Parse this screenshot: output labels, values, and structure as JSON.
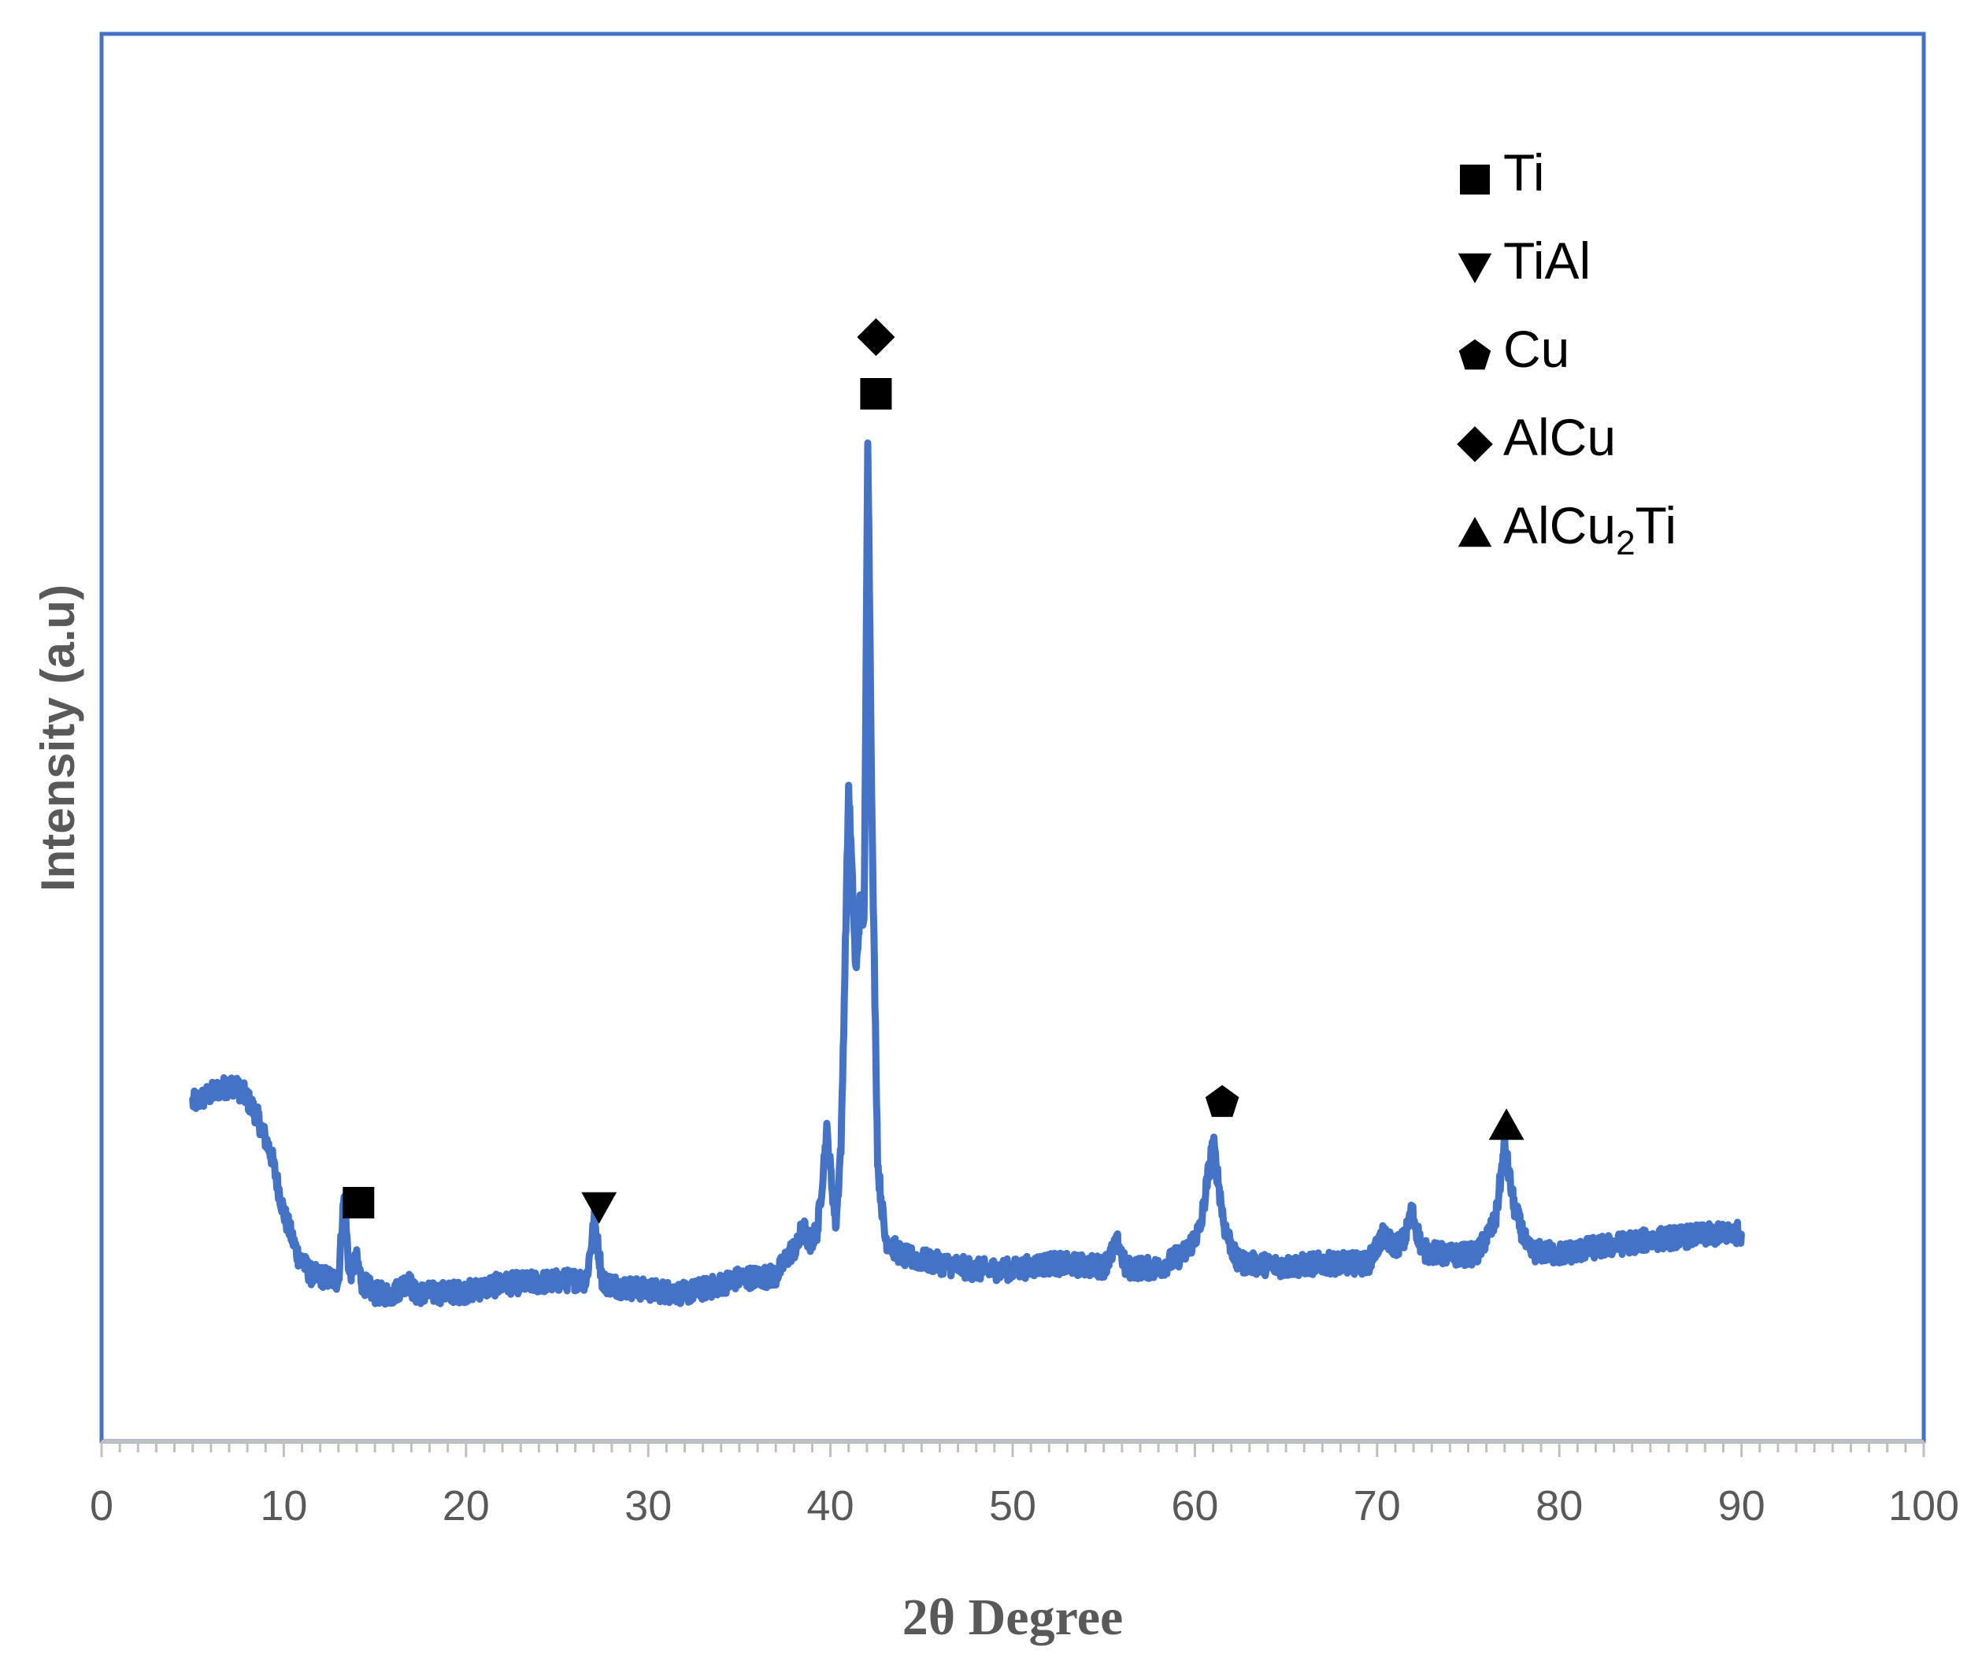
{
  "chart_data": {
    "type": "line",
    "title": "",
    "xlabel": "2θ Degree",
    "ylabel": "Intensity (a.u)",
    "xlim": [
      0,
      100
    ],
    "x_ticks": [
      "0",
      "10",
      "20",
      "30",
      "40",
      "50",
      "60",
      "70",
      "80",
      "90",
      "100"
    ],
    "y_ticks_shown": false,
    "grid": false,
    "legend_position": "top-right",
    "colors": {
      "line": "#4472c4",
      "frame": "#4472c4",
      "axis": "#bfbfbf",
      "marker": "#000000",
      "text": "#595959"
    },
    "legend": [
      {
        "marker": "square",
        "label": "Ti"
      },
      {
        "marker": "triangle-down",
        "label": "TiAl"
      },
      {
        "marker": "pentagon",
        "label": "Cu"
      },
      {
        "marker": "diamond",
        "label": "AlCu"
      },
      {
        "marker": "triangle-up",
        "label": "AlCu",
        "subscript": "2",
        "suffix": "Ti"
      }
    ],
    "x_range_measured": [
      5,
      90
    ],
    "noise_amplitude": 14,
    "series": [
      {
        "values": [
          [
            5,
            300
          ],
          [
            5.5,
            305
          ],
          [
            6.5,
            318
          ],
          [
            7.2,
            322
          ],
          [
            7.8,
            312
          ],
          [
            8.5,
            285
          ],
          [
            9.3,
            235
          ],
          [
            10,
            160
          ],
          [
            10.8,
            105
          ],
          [
            11.5,
            82
          ],
          [
            12.3,
            78
          ],
          [
            13,
            74
          ],
          [
            13.3,
            180
          ],
          [
            13.6,
            82
          ],
          [
            14,
            100
          ],
          [
            14.3,
            72
          ],
          [
            15,
            58
          ],
          [
            16,
            57
          ],
          [
            16.8,
            74
          ],
          [
            17.2,
            58
          ],
          [
            18,
            58
          ],
          [
            20,
            60
          ],
          [
            22,
            70
          ],
          [
            24,
            72
          ],
          [
            26,
            75
          ],
          [
            26.6,
            75
          ],
          [
            27.05,
            150
          ],
          [
            27.5,
            72
          ],
          [
            28.5,
            66
          ],
          [
            30,
            62
          ],
          [
            32,
            58
          ],
          [
            33.5,
            66
          ],
          [
            35,
            77
          ],
          [
            37,
            80
          ],
          [
            37.8,
            110
          ],
          [
            38.2,
            118
          ],
          [
            38.5,
            146
          ],
          [
            38.8,
            118
          ],
          [
            39.3,
            140
          ],
          [
            39.8,
            262
          ],
          [
            40.3,
            145
          ],
          [
            40.6,
            255
          ],
          [
            41.0,
            700
          ],
          [
            41.4,
            460
          ],
          [
            41.65,
            560
          ],
          [
            41.85,
            520
          ],
          [
            42.05,
            1150
          ],
          [
            42.3,
            620
          ],
          [
            42.6,
            220
          ],
          [
            43,
            128
          ],
          [
            43.5,
            115
          ],
          [
            44,
            105
          ],
          [
            46,
            96
          ],
          [
            48,
            88
          ],
          [
            50,
            88
          ],
          [
            52,
            96
          ],
          [
            55,
            92
          ],
          [
            55.8,
            122
          ],
          [
            56.2,
            90
          ],
          [
            58,
            90
          ],
          [
            59.5,
            110
          ],
          [
            60.3,
            140
          ],
          [
            61,
            250
          ],
          [
            61.6,
            145
          ],
          [
            62.3,
            98
          ],
          [
            63,
            96
          ],
          [
            65,
            92
          ],
          [
            67,
            96
          ],
          [
            69.5,
            96
          ],
          [
            70.3,
            130
          ],
          [
            71,
            118
          ],
          [
            71.5,
            126
          ],
          [
            71.9,
            162
          ],
          [
            72.5,
            112
          ],
          [
            74,
            106
          ],
          [
            75.5,
            108
          ],
          [
            76.5,
            150
          ],
          [
            77,
            245
          ],
          [
            77.5,
            170
          ],
          [
            78.3,
            112
          ],
          [
            80,
            108
          ],
          [
            82,
            116
          ],
          [
            85,
            126
          ],
          [
            88,
            132
          ],
          [
            90,
            135
          ]
        ]
      }
    ],
    "annotations": [
      {
        "marker": "square",
        "x": 14.1,
        "y": 173
      },
      {
        "marker": "triangle-down",
        "x": 27.3,
        "y": 167
      },
      {
        "marker": "square",
        "x": 42.5,
        "y": 1200
      },
      {
        "marker": "diamond",
        "x": 42.5,
        "y": 1272
      },
      {
        "marker": "pentagon",
        "x": 61.5,
        "y": 300
      },
      {
        "marker": "triangle-up",
        "x": 77.1,
        "y": 272
      }
    ]
  }
}
